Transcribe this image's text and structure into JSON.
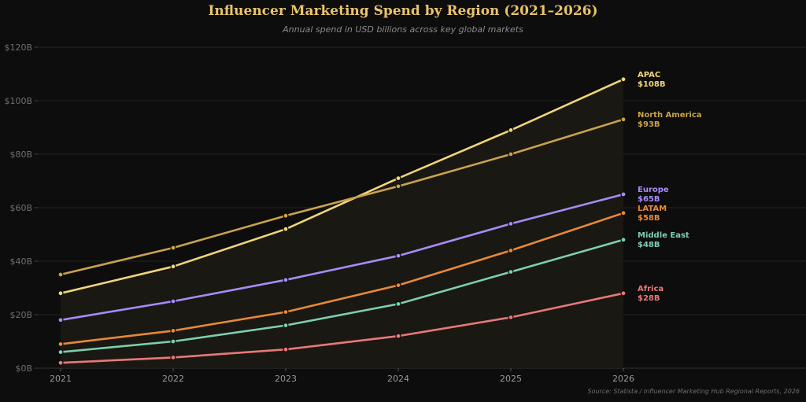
{
  "title": "Influencer Marketing Spend by Region (2021–2026)",
  "subtitle": "Annual spend in USD billions across key global markets",
  "source": "Source: Statista / Influencer Marketing Hub Regional Reports, 2026",
  "chart_data": {
    "type": "line",
    "title": "Influencer Marketing Spend by Region (2021–2026)",
    "subtitle": "Annual spend in USD billions across key global markets",
    "x": [
      2021,
      2022,
      2023,
      2024,
      2025,
      2026
    ],
    "ylim": [
      0,
      120
    ],
    "yticks": [
      0,
      20,
      40,
      60,
      80,
      100,
      120
    ],
    "ytick_labels": [
      "$0B",
      "$20B",
      "$40B",
      "$60B",
      "$80B",
      "$100B",
      "$120B"
    ],
    "grid": true,
    "series": [
      {
        "name": "APAC",
        "end_label": "$108B",
        "color": "#f0d67a",
        "values": [
          28,
          38,
          52,
          71,
          89,
          108
        ]
      },
      {
        "name": "North America",
        "end_label": "$93B",
        "color": "#c9a24e",
        "values": [
          35,
          45,
          57,
          68,
          80,
          93
        ]
      },
      {
        "name": "Europe",
        "end_label": "$65B",
        "color": "#a78bfa",
        "values": [
          18,
          25,
          33,
          42,
          54,
          65
        ]
      },
      {
        "name": "LATAM",
        "end_label": "$58B",
        "color": "#e8883a",
        "values": [
          9,
          14,
          21,
          31,
          44,
          58
        ]
      },
      {
        "name": "Middle East",
        "end_label": "$48B",
        "color": "#7dcfb0",
        "values": [
          6,
          10,
          16,
          24,
          36,
          48
        ]
      },
      {
        "name": "Africa",
        "end_label": "$28B",
        "color": "#e87878",
        "values": [
          2,
          4,
          7,
          12,
          19,
          28
        ]
      }
    ]
  }
}
